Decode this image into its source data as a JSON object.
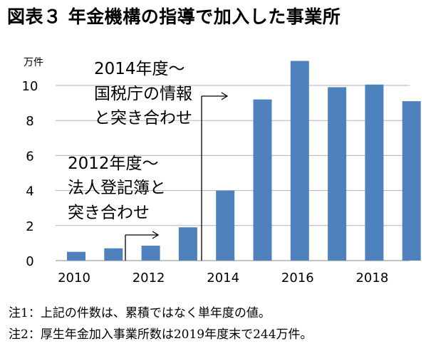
{
  "title": "図表３ 年金機構の指導で加入した事業所",
  "chart_data": {
    "type": "bar",
    "unit_label": "万件",
    "x": [
      2010,
      2011,
      2012,
      2013,
      2014,
      2015,
      2016,
      2017,
      2018,
      2019
    ],
    "values": [
      0.5,
      0.7,
      0.85,
      1.9,
      4.0,
      9.2,
      11.4,
      9.9,
      10.05,
      9.1
    ],
    "y_ticks": [
      0,
      2,
      4,
      6,
      8,
      10
    ],
    "x_ticks": [
      2010,
      2012,
      2014,
      2016,
      2018
    ],
    "ylim": [
      0,
      12
    ],
    "bar_color": "#4F81BD",
    "grid": "horizontal",
    "annotations": [
      {
        "lines": [
          "2014年度～",
          "国税庁の情報",
          "と突き合わせ"
        ],
        "marker_at": 2014
      },
      {
        "lines": [
          "2012年度～",
          "法人登記簿と",
          "突き合わせ"
        ],
        "marker_at": 2012
      }
    ]
  },
  "notes": [
    "注1：上記の件数は、累積ではなく単年度の値。",
    "注2：厚生年金加入事業所数は2019年度末で244万件。"
  ]
}
